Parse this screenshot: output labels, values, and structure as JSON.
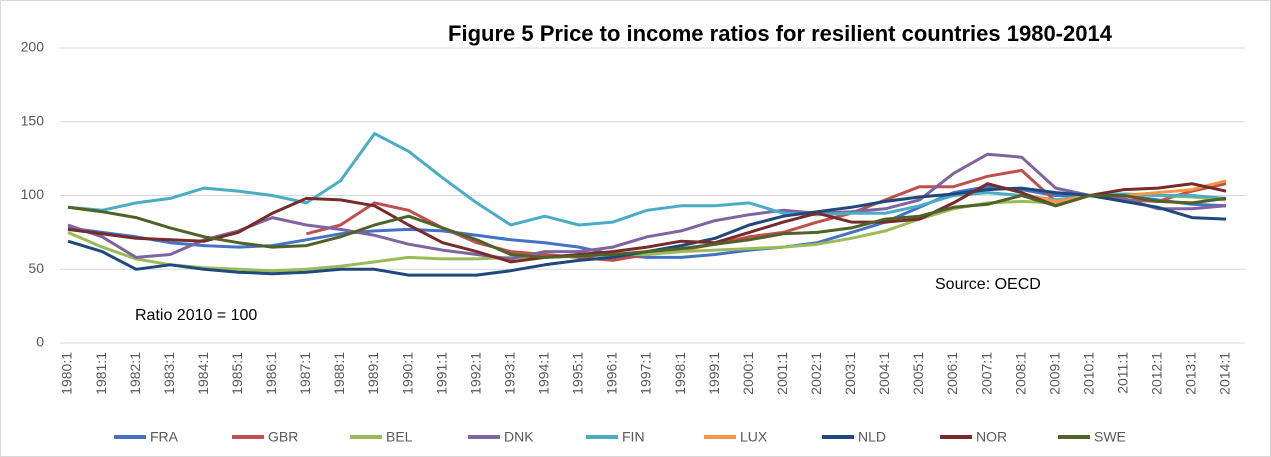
{
  "chart_data": {
    "type": "line",
    "title": "Figure 5 Price to income ratios for resilient countries 1980-2014",
    "annotations": [
      "Source: OECD",
      "Ratio 2010 = 100"
    ],
    "categories": [
      "1980:1",
      "1981:1",
      "1982:1",
      "1983:1",
      "1984:1",
      "1985:1",
      "1986:1",
      "1987:1",
      "1988:1",
      "1989:1",
      "1990:1",
      "1991:1",
      "1992:1",
      "1993:1",
      "1994:1",
      "1995:1",
      "1996:1",
      "1997:1",
      "1998:1",
      "1999:1",
      "2000:1",
      "2001:1",
      "2002:1",
      "2003:1",
      "2004:1",
      "2005:1",
      "2006:1",
      "2007:1",
      "2008:1",
      "2009:1",
      "2010:1",
      "2011:1",
      "2012:1",
      "2013:1",
      "2014:1"
    ],
    "ylim": [
      0,
      200
    ],
    "yticks": [
      0,
      50,
      100,
      150,
      200
    ],
    "grid": true,
    "legend": "bottom",
    "series": [
      {
        "name": "FRA",
        "color": "#4472c4",
        "values": [
          78,
          75,
          72,
          68,
          66,
          65,
          66,
          70,
          74,
          76,
          77,
          76,
          73,
          70,
          68,
          65,
          60,
          58,
          58,
          60,
          63,
          65,
          68,
          75,
          82,
          92,
          102,
          106,
          104,
          100,
          100,
          100,
          97,
          94,
          93
        ]
      },
      {
        "name": "GBR",
        "color": "#c0504d",
        "values": [
          null,
          null,
          null,
          null,
          null,
          null,
          null,
          74,
          80,
          95,
          90,
          78,
          68,
          62,
          60,
          58,
          56,
          60,
          63,
          67,
          72,
          75,
          82,
          88,
          97,
          106,
          106,
          113,
          117,
          96,
          100,
          97,
          96,
          103,
          108
        ]
      },
      {
        "name": "BEL",
        "color": "#9bbb59",
        "values": [
          75,
          65,
          57,
          53,
          51,
          50,
          49,
          50,
          52,
          55,
          58,
          57,
          57,
          58,
          58,
          59,
          60,
          60,
          62,
          63,
          64,
          65,
          67,
          71,
          76,
          84,
          91,
          95,
          96,
          95,
          100,
          101,
          100,
          99,
          97
        ]
      },
      {
        "name": "DNK",
        "color": "#8064a2",
        "values": [
          80,
          72,
          58,
          60,
          70,
          76,
          85,
          80,
          77,
          73,
          67,
          63,
          60,
          57,
          62,
          62,
          65,
          72,
          76,
          83,
          87,
          90,
          88,
          89,
          91,
          97,
          115,
          128,
          126,
          105,
          100,
          98,
          91,
          91,
          93
        ]
      },
      {
        "name": "FIN",
        "color": "#4bacc6",
        "values": [
          92,
          90,
          95,
          98,
          105,
          103,
          100,
          95,
          110,
          142,
          130,
          112,
          95,
          80,
          86,
          80,
          82,
          90,
          93,
          93,
          95,
          88,
          87,
          88,
          88,
          93,
          100,
          102,
          100,
          97,
          100,
          101,
          100,
          100,
          98
        ]
      },
      {
        "name": "LUX",
        "color": "#f79646",
        "values": [
          null,
          null,
          null,
          null,
          null,
          null,
          null,
          null,
          null,
          null,
          null,
          null,
          null,
          null,
          null,
          null,
          null,
          null,
          null,
          null,
          null,
          null,
          null,
          null,
          null,
          null,
          null,
          null,
          101,
          96,
          100,
          100,
          102,
          104,
          110
        ]
      },
      {
        "name": "NLD",
        "color": "#1f497d",
        "values": [
          69,
          62,
          50,
          53,
          50,
          48,
          47,
          48,
          50,
          50,
          46,
          46,
          46,
          49,
          53,
          56,
          58,
          62,
          66,
          71,
          80,
          86,
          89,
          92,
          96,
          99,
          101,
          104,
          105,
          102,
          100,
          96,
          92,
          85,
          84
        ]
      },
      {
        "name": "NOR",
        "color": "#772c2a",
        "values": [
          77,
          74,
          71,
          70,
          69,
          75,
          88,
          98,
          97,
          93,
          80,
          68,
          62,
          55,
          58,
          60,
          62,
          65,
          69,
          68,
          75,
          82,
          88,
          82,
          82,
          84,
          95,
          108,
          102,
          93,
          100,
          104,
          105,
          108,
          103
        ]
      },
      {
        "name": "SWE",
        "color": "#4f6228",
        "values": [
          92,
          89,
          85,
          78,
          72,
          68,
          65,
          66,
          72,
          80,
          86,
          78,
          70,
          60,
          58,
          59,
          60,
          62,
          64,
          67,
          70,
          74,
          75,
          78,
          84,
          86,
          92,
          94,
          100,
          93,
          100,
          100,
          96,
          95,
          98
        ]
      }
    ]
  }
}
